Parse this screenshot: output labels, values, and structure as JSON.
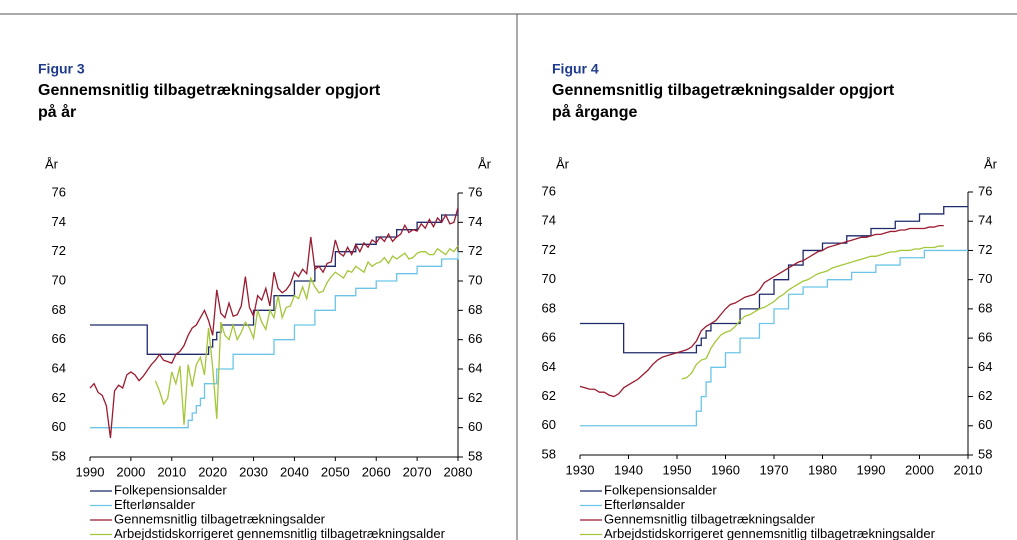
{
  "chart_data": [
    {
      "type": "line",
      "label": "Figur 3",
      "title": [
        "Gennemsnitlig tilbagetrækningsalder opgjort",
        "på år"
      ],
      "ylabel": "År",
      "y2label": "År",
      "x": [
        1990,
        1991,
        1992,
        1993,
        1994,
        1995,
        1996,
        1997,
        1998,
        1999,
        2000,
        2001,
        2002,
        2003,
        2004,
        2005,
        2006,
        2007,
        2008,
        2009,
        2010,
        2011,
        2012,
        2013,
        2014,
        2015,
        2016,
        2017,
        2018,
        2019,
        2020,
        2021,
        2022,
        2023,
        2024,
        2025,
        2026,
        2027,
        2028,
        2029,
        2030,
        2031,
        2032,
        2033,
        2034,
        2035,
        2036,
        2037,
        2038,
        2039,
        2040,
        2041,
        2042,
        2043,
        2044,
        2045,
        2046,
        2047,
        2048,
        2049,
        2050,
        2051,
        2052,
        2053,
        2054,
        2055,
        2056,
        2057,
        2058,
        2059,
        2060,
        2061,
        2062,
        2063,
        2064,
        2065,
        2066,
        2067,
        2068,
        2069,
        2070,
        2071,
        2072,
        2073,
        2074,
        2075,
        2076,
        2077,
        2078,
        2079,
        2080
      ],
      "xlim": [
        1990,
        2080
      ],
      "xticks": [
        1990,
        2000,
        2010,
        2020,
        2030,
        2040,
        2050,
        2060,
        2070,
        2080
      ],
      "ylim": [
        58,
        76
      ],
      "yticks": [
        58,
        60,
        62,
        64,
        66,
        68,
        70,
        72,
        74,
        76
      ],
      "y2lim": [
        58,
        76
      ],
      "y2ticks": [
        58,
        60,
        62,
        64,
        66,
        68,
        70,
        72,
        74,
        76
      ],
      "series": [
        {
          "name": "Folkepensionsalder",
          "color": "#1f2a6b",
          "step": true,
          "values": [
            67,
            67,
            67,
            67,
            67,
            67,
            67,
            67,
            67,
            67,
            67,
            67,
            67,
            67,
            65,
            65,
            65,
            65,
            65,
            65,
            65,
            65,
            65,
            65,
            65,
            65,
            65,
            65,
            65,
            65.5,
            66,
            66.5,
            67,
            67,
            67,
            67,
            67,
            67,
            67,
            67,
            68,
            68,
            68,
            68,
            68,
            69,
            69,
            69,
            69,
            69,
            70,
            70,
            70,
            70,
            70,
            71,
            71,
            71,
            71,
            71,
            72,
            72,
            72,
            72,
            72,
            72.5,
            72.5,
            72.5,
            72.5,
            72.5,
            73,
            73,
            73,
            73,
            73,
            73.5,
            73.5,
            73.5,
            73.5,
            73.5,
            74,
            74,
            74,
            74,
            74,
            74,
            74.5,
            74.5,
            74.5,
            74.5,
            75
          ]
        },
        {
          "name": "Efterlønsalder",
          "color": "#6cc5e8",
          "step": true,
          "values": [
            60,
            60,
            60,
            60,
            60,
            60,
            60,
            60,
            60,
            60,
            60,
            60,
            60,
            60,
            60,
            60,
            60,
            60,
            60,
            60,
            60,
            60,
            60,
            60,
            60.5,
            61,
            61.5,
            62,
            63,
            63,
            63,
            64,
            64,
            64,
            64,
            65,
            65,
            65,
            65,
            65,
            65,
            65,
            65,
            65,
            65,
            66,
            66,
            66,
            66,
            66,
            67,
            67,
            67,
            67,
            67,
            68,
            68,
            68,
            68,
            68,
            69,
            69,
            69,
            69,
            69,
            69.5,
            69.5,
            69.5,
            69.5,
            69.5,
            70,
            70,
            70,
            70,
            70,
            70.5,
            70.5,
            70.5,
            70.5,
            70.5,
            71,
            71,
            71,
            71,
            71,
            71,
            71.5,
            71.5,
            71.5,
            71.5,
            72
          ]
        },
        {
          "name": "Gennemsnitlig tilbagetrækningsalder",
          "color": "#9b1b30",
          "values": [
            62.7,
            63,
            62.4,
            62.2,
            61.5,
            59.3,
            62.5,
            62.9,
            62.7,
            63.6,
            63.8,
            63.6,
            63.2,
            63.5,
            63.9,
            64.3,
            64.6,
            65,
            64.6,
            64.5,
            64.4,
            65,
            65.2,
            65.6,
            66.3,
            66.8,
            67,
            67.5,
            68,
            67.3,
            66.3,
            69.4,
            67.8,
            67.5,
            68.5,
            67.6,
            67.7,
            68.3,
            70.3,
            68.2,
            67.6,
            69,
            68.7,
            69.5,
            68.3,
            70.6,
            69.5,
            69.2,
            69.4,
            69.8,
            70.6,
            70.3,
            70.8,
            70.5,
            73,
            70.8,
            71,
            70.6,
            71.2,
            71.3,
            72.8,
            71.9,
            71.7,
            72.3,
            71.8,
            72.5,
            72,
            72.6,
            72.3,
            72.8,
            72.6,
            73,
            72.7,
            73.2,
            72.7,
            73,
            73.2,
            73.8,
            73.3,
            73.5,
            73.4,
            73.9,
            73.6,
            74.2,
            73.7,
            74.3,
            74,
            74.5,
            73.9,
            74,
            75
          ]
        },
        {
          "name": "Arbejdstidskorrigeret gennemsnitlig tilbagetrækningsalder",
          "color": "#a3c739",
          "values": [
            null,
            null,
            null,
            null,
            null,
            null,
            null,
            null,
            null,
            null,
            null,
            null,
            null,
            null,
            null,
            null,
            63.2,
            62.5,
            61.6,
            62,
            63.8,
            63,
            64.2,
            60.2,
            64.3,
            62.8,
            64.3,
            64.8,
            63.6,
            66.8,
            64.1,
            60.6,
            67.2,
            66.3,
            66,
            67,
            66,
            66.5,
            67.2,
            66.8,
            66.1,
            68,
            67.2,
            66.7,
            68,
            67.5,
            69,
            67.5,
            68.2,
            68.3,
            69,
            68.8,
            69.6,
            68.8,
            70.2,
            69.6,
            69.2,
            69.3,
            69.9,
            70.3,
            70.6,
            70.4,
            70.2,
            70.7,
            70.6,
            71,
            70.8,
            70.6,
            71.3,
            71,
            71.2,
            71.3,
            71.6,
            71.2,
            71.7,
            71.5,
            71.7,
            71.9,
            71.5,
            71.6,
            71.9,
            72,
            72,
            71.8,
            71.8,
            72.2,
            72,
            71.8,
            72.2,
            72,
            72.4
          ]
        }
      ]
    },
    {
      "type": "line",
      "label": "Figur 4",
      "title": [
        "Gennemsnitlig tilbagetrækningsalder opgjort",
        "på årgange"
      ],
      "ylabel": "År",
      "y2label": "År",
      "x": [
        1930,
        1931,
        1932,
        1933,
        1934,
        1935,
        1936,
        1937,
        1938,
        1939,
        1940,
        1941,
        1942,
        1943,
        1944,
        1945,
        1946,
        1947,
        1948,
        1949,
        1950,
        1951,
        1952,
        1953,
        1954,
        1955,
        1956,
        1957,
        1958,
        1959,
        1960,
        1961,
        1962,
        1963,
        1964,
        1965,
        1966,
        1967,
        1968,
        1969,
        1970,
        1971,
        1972,
        1973,
        1974,
        1975,
        1976,
        1977,
        1978,
        1979,
        1980,
        1981,
        1982,
        1983,
        1984,
        1985,
        1986,
        1987,
        1988,
        1989,
        1990,
        1991,
        1992,
        1993,
        1994,
        1995,
        1996,
        1997,
        1998,
        1999,
        2000,
        2001,
        2002,
        2003,
        2004,
        2005,
        2006,
        2007,
        2008,
        2009,
        2010
      ],
      "xlim": [
        1930,
        2010
      ],
      "xticks": [
        1930,
        1940,
        1950,
        1960,
        1970,
        1980,
        1990,
        2000,
        2010
      ],
      "ylim": [
        58,
        76
      ],
      "yticks": [
        58,
        60,
        62,
        64,
        66,
        68,
        70,
        72,
        74,
        76
      ],
      "y2lim": [
        58,
        76
      ],
      "y2ticks": [
        58,
        60,
        62,
        64,
        66,
        68,
        70,
        72,
        74,
        76
      ],
      "series": [
        {
          "name": "Folkepensionsalder",
          "color": "#1f2a6b",
          "step": true,
          "values": [
            67,
            67,
            67,
            67,
            67,
            67,
            67,
            67,
            67,
            65,
            65,
            65,
            65,
            65,
            65,
            65,
            65,
            65,
            65,
            65,
            65,
            65,
            65,
            65,
            65.5,
            66,
            66.5,
            67,
            67,
            67,
            67,
            67,
            67,
            68,
            68,
            68,
            68,
            69,
            69,
            69,
            70,
            70,
            70,
            71,
            71,
            71,
            72,
            72,
            72,
            72,
            72.5,
            72.5,
            72.5,
            72.5,
            72.5,
            73,
            73,
            73,
            73,
            73,
            73.5,
            73.5,
            73.5,
            73.5,
            73.5,
            74,
            74,
            74,
            74,
            74,
            74.5,
            74.5,
            74.5,
            74.5,
            74.5,
            75,
            75,
            75,
            75,
            75,
            75
          ]
        },
        {
          "name": "Efterlønsalder",
          "color": "#6cc5e8",
          "step": true,
          "values": [
            60,
            60,
            60,
            60,
            60,
            60,
            60,
            60,
            60,
            60,
            60,
            60,
            60,
            60,
            60,
            60,
            60,
            60,
            60,
            60,
            60,
            60,
            60,
            60,
            61,
            62,
            63,
            64,
            64,
            64,
            65,
            65,
            65,
            66,
            66,
            66,
            66,
            67,
            67,
            67,
            68,
            68,
            68,
            69,
            69,
            69,
            69.5,
            69.5,
            69.5,
            69.5,
            69.5,
            70,
            70,
            70,
            70,
            70,
            70.5,
            70.5,
            70.5,
            70.5,
            70.5,
            71,
            71,
            71,
            71,
            71,
            71.5,
            71.5,
            71.5,
            71.5,
            71.5,
            72,
            72,
            72,
            72,
            72,
            72,
            72,
            72,
            72,
            72
          ]
        },
        {
          "name": "Gennemsnitlig tilbagetrækningsalder",
          "color": "#9b1b30",
          "values": [
            62.7,
            62.6,
            62.5,
            62.5,
            62.3,
            62.3,
            62.1,
            62,
            62.2,
            62.6,
            62.8,
            63,
            63.2,
            63.5,
            63.8,
            64.2,
            64.5,
            64.7,
            64.8,
            64.9,
            65,
            65.1,
            65.2,
            65.4,
            65.8,
            66.5,
            66.8,
            67,
            67.2,
            67.6,
            68,
            68.3,
            68.4,
            68.6,
            68.8,
            68.9,
            69,
            69.3,
            69.8,
            70,
            70.2,
            70.4,
            70.6,
            70.8,
            71,
            71.2,
            71.3,
            71.5,
            71.7,
            71.9,
            72,
            72.2,
            72.3,
            72.4,
            72.5,
            72.6,
            72.7,
            72.8,
            72.9,
            72.9,
            73,
            73.1,
            73.1,
            73.2,
            73.3,
            73.3,
            73.4,
            73.4,
            73.5,
            73.5,
            73.5,
            73.5,
            73.6,
            73.6,
            73.7,
            73.7,
            null,
            null,
            null,
            null,
            null
          ]
        },
        {
          "name": "Arbejdstidskorrigeret gennemsnitlig tilbagetrækningsalder",
          "color": "#a3c739",
          "values": [
            null,
            null,
            null,
            null,
            null,
            null,
            null,
            null,
            null,
            null,
            null,
            null,
            null,
            null,
            null,
            null,
            null,
            null,
            null,
            null,
            null,
            63.2,
            63.3,
            63.6,
            64.2,
            64.5,
            64.6,
            65.3,
            65.8,
            66.2,
            66.4,
            66.5,
            66.8,
            67.2,
            67.5,
            67.6,
            67.8,
            68,
            68.1,
            68.3,
            68.5,
            68.8,
            69,
            69.3,
            69.5,
            69.7,
            69.9,
            70,
            70.2,
            70.4,
            70.5,
            70.6,
            70.8,
            70.9,
            71,
            71.1,
            71.2,
            71.3,
            71.4,
            71.5,
            71.6,
            71.6,
            71.7,
            71.8,
            71.9,
            71.9,
            72,
            72,
            72,
            72.1,
            72.1,
            72.2,
            72.2,
            72.2,
            72.3,
            72.3,
            null,
            null,
            null,
            null,
            null
          ]
        }
      ]
    }
  ]
}
